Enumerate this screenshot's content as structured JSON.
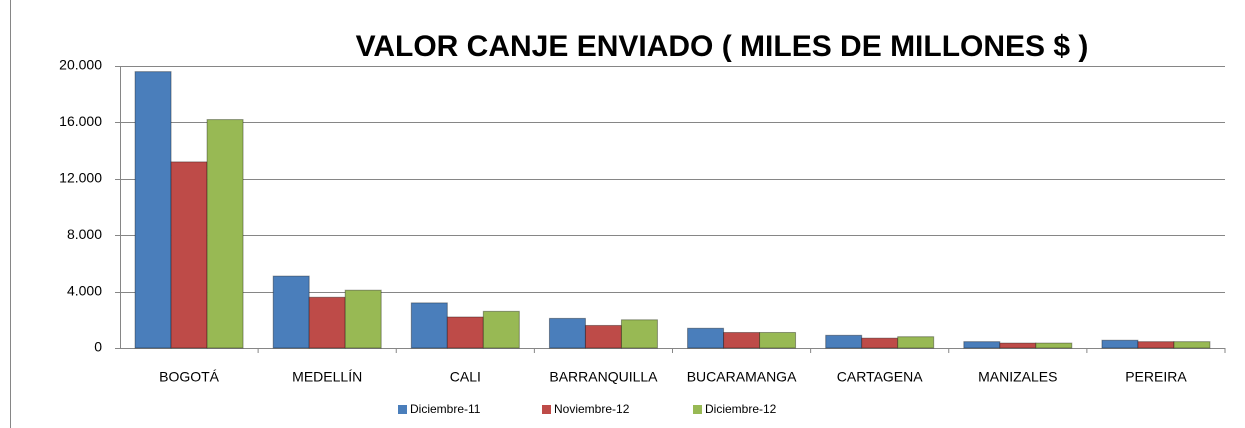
{
  "chart_data": {
    "type": "bar",
    "title": "VALOR CANJE ENVIADO ( MILES DE MILLONES $ )",
    "categories": [
      "BOGOTÁ",
      "MEDELLÍN",
      "CALI",
      "BARRANQUILLA",
      "BUCARAMANGA",
      "CARTAGENA",
      "MANIZALES",
      "PEREIRA"
    ],
    "series": [
      {
        "name": "Diciembre-11",
        "color": "#4a7ebb",
        "values": [
          19600,
          5100,
          3200,
          2100,
          1400,
          900,
          450,
          550
        ]
      },
      {
        "name": "Noviembre-12",
        "color": "#be4b48",
        "values": [
          13200,
          3600,
          2200,
          1600,
          1100,
          700,
          350,
          450
        ]
      },
      {
        "name": "Diciembre-12",
        "color": "#98b954",
        "values": [
          16200,
          4100,
          2600,
          2000,
          1100,
          800,
          350,
          450
        ]
      }
    ],
    "ylim": [
      0,
      20000
    ],
    "yticks": [
      0,
      {
        "value": 4000,
        "label": "4.000"
      },
      {
        "value": 8000,
        "label": "8.000"
      },
      {
        "value": 12000,
        "label": "12.000"
      },
      {
        "value": 16000,
        "label": "16.000"
      },
      {
        "value": 20000,
        "label": "20.000"
      }
    ],
    "grid": true,
    "legend": "bottom"
  }
}
